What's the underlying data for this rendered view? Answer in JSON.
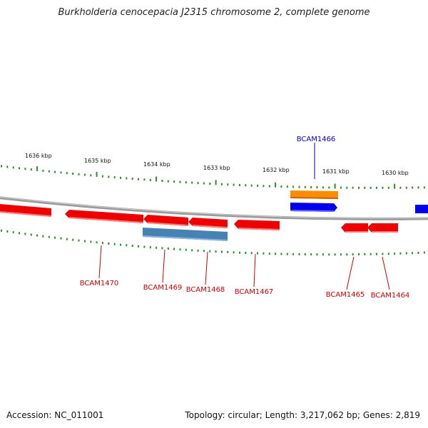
{
  "title": "Burkholderia cenocepacia J2315 chromosome 2, complete genome",
  "footer": {
    "accession": "Accession: NC_011001",
    "summary": "Topology: circular; Length: 3,217,062 bp; Genes: 2,819"
  },
  "colors": {
    "backbone": "#888888",
    "tick": "#2e8b2e",
    "gene_forward_label": "#0000cc",
    "gene_reverse_label": "#cc0000",
    "red_feature": "#ee0000",
    "blue_feature": "#0000ee",
    "orange_feature": "#ff8800",
    "steelblue_feature": "#4682b4"
  },
  "scale_labels": [
    "1636 kbp",
    "1635 kbp",
    "1634 kbp",
    "1633 kbp",
    "1632 kbp",
    "1631 kbp",
    "1630 kbp"
  ],
  "gene_labels": [
    {
      "id": "BCAM1466",
      "strand": "forward"
    },
    {
      "id": "BCAM1470",
      "strand": "reverse"
    },
    {
      "id": "BCAM1469",
      "strand": "reverse"
    },
    {
      "id": "BCAM1468",
      "strand": "reverse"
    },
    {
      "id": "BCAM1467",
      "strand": "reverse"
    },
    {
      "id": "BCAM1465",
      "strand": "reverse"
    },
    {
      "id": "BCAM1464",
      "strand": "reverse"
    }
  ]
}
